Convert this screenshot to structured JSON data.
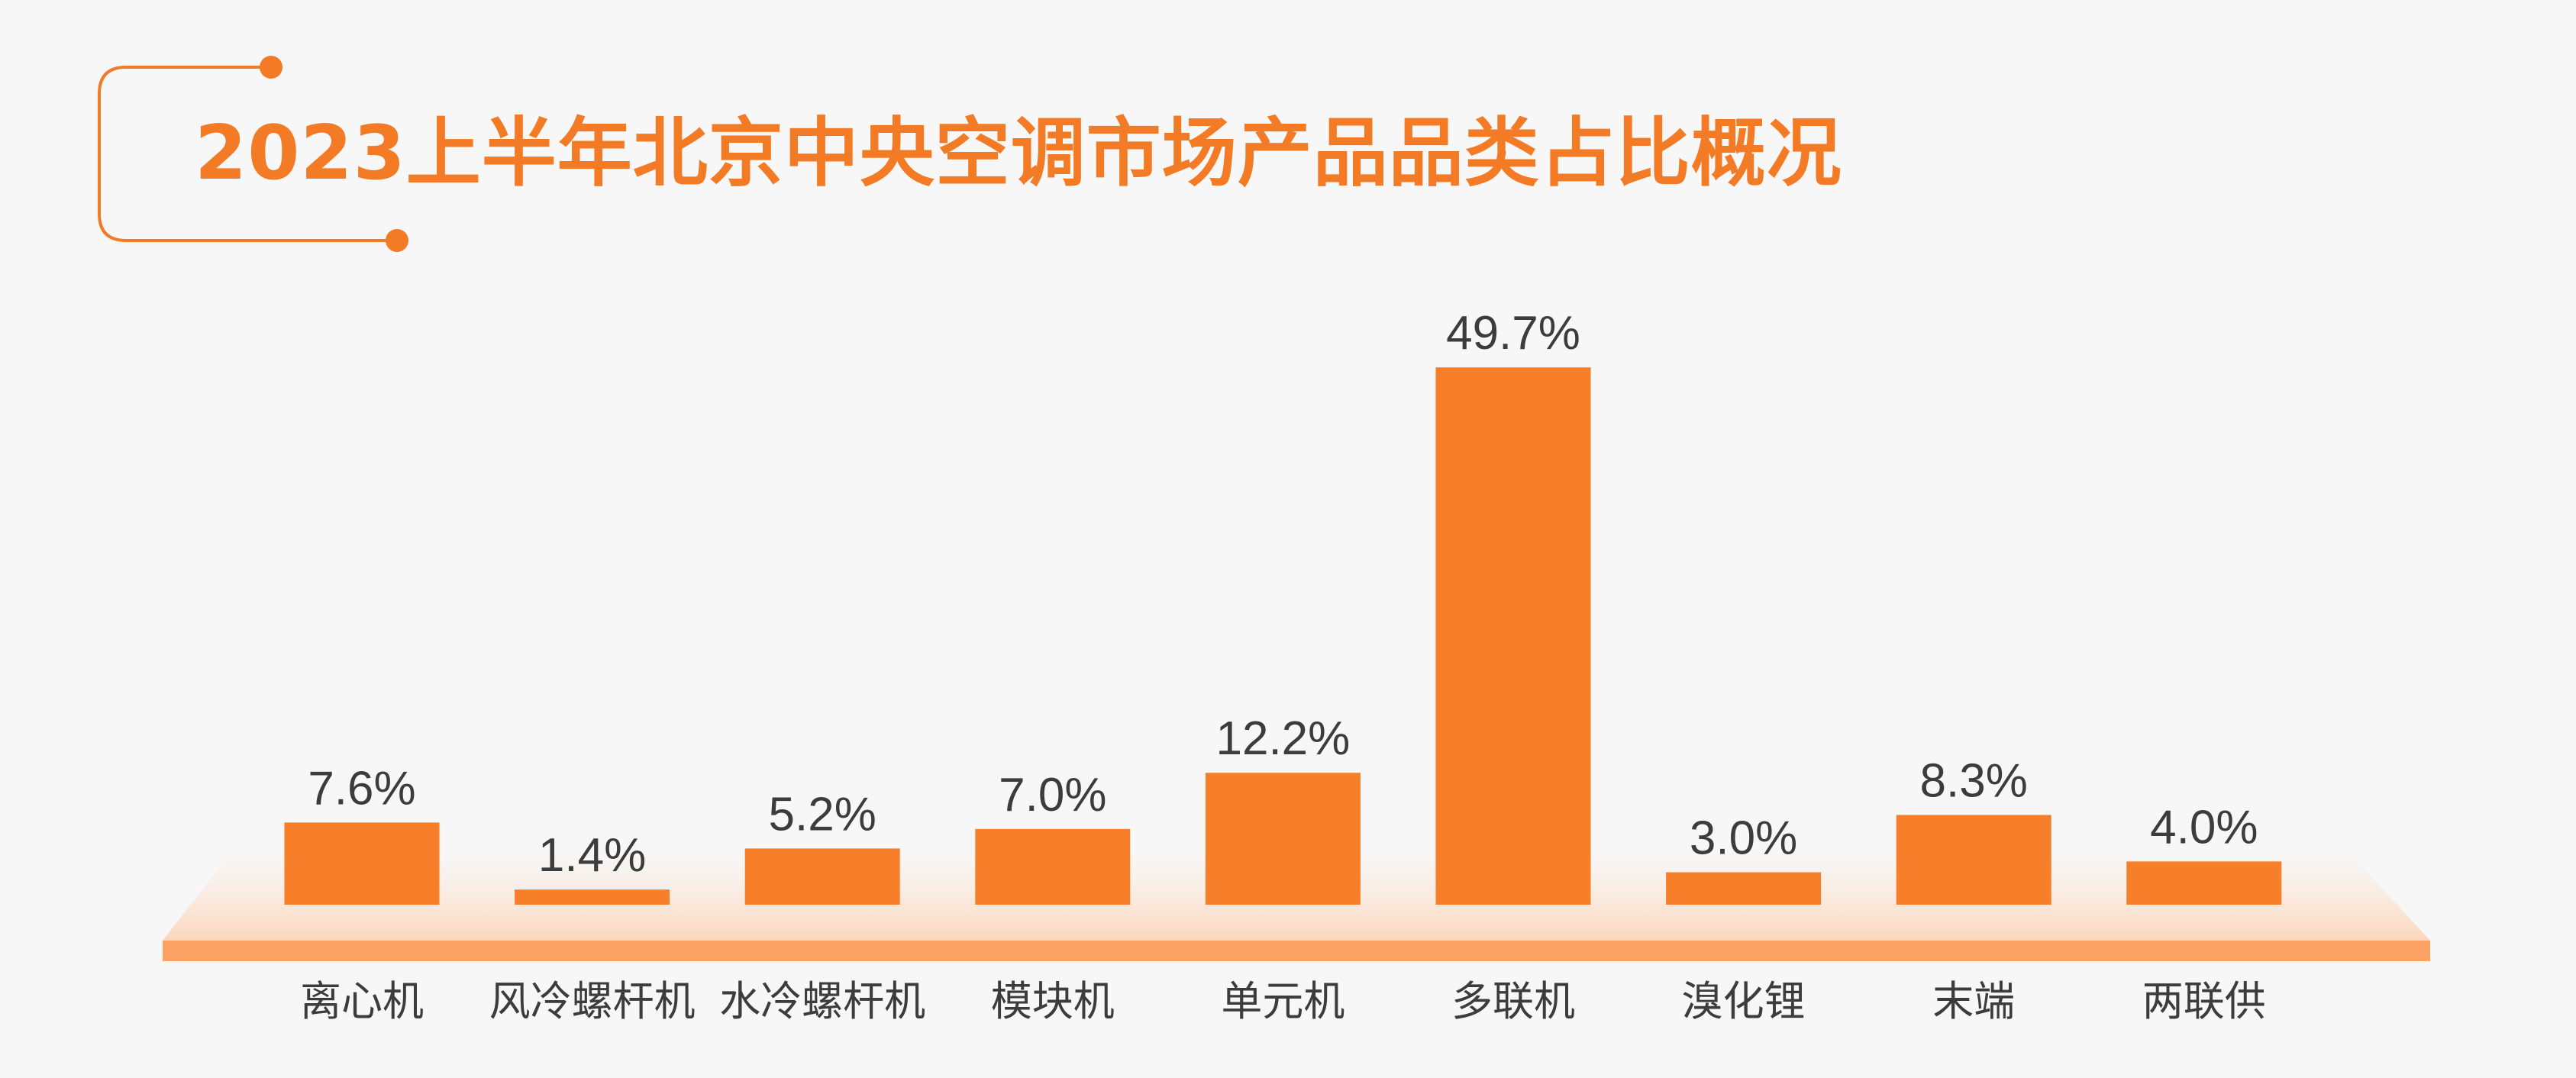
{
  "chart_data": {
    "type": "bar",
    "title": "2023上半年北京中央空调市场产品品类占比概况",
    "categories": [
      "离心机",
      "风冷螺杆机",
      "水冷螺杆机",
      "模块机",
      "单元机",
      "多联机",
      "溴化锂",
      "末端",
      "两联供"
    ],
    "values": [
      7.6,
      1.4,
      5.2,
      7.0,
      12.2,
      49.7,
      3.0,
      8.3,
      4.0
    ],
    "value_labels": [
      "7.6%",
      "1.4%",
      "5.2%",
      "7.0%",
      "12.2%",
      "49.7%",
      "3.0%",
      "8.3%",
      "4.0%"
    ],
    "unit": "%",
    "ylim": [
      0,
      50
    ],
    "grid": false,
    "legend": "none",
    "colors": {
      "bar": "#f77f2a",
      "base": "#fba264",
      "title": "#f37b25",
      "text": "#3c3c3c",
      "background": "#f7f7f7"
    }
  }
}
